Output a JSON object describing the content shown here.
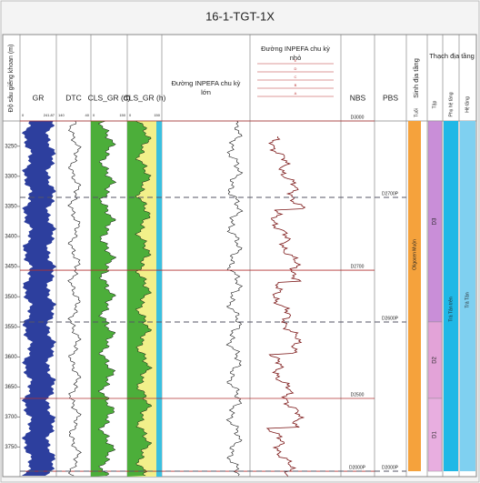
{
  "title": "16-1-TGT-1X",
  "depth_axis": {
    "label": "Độ sâu giếng khoan (m)",
    "lim": [
      3208,
      3799
    ],
    "ticks": [
      3250,
      3300,
      3350,
      3400,
      3450,
      3500,
      3550,
      3600,
      3650,
      3700,
      3750
    ]
  },
  "tracks": [
    {
      "label": "GR",
      "scale": [
        "0",
        "241.87"
      ]
    },
    {
      "label": "DTC",
      "scale": [
        "140",
        "40"
      ]
    },
    {
      "label": "CLS_GR (đ)",
      "scale": [
        "0",
        "150"
      ]
    },
    {
      "label": "CLS_GR (h)",
      "scale": [
        "0",
        "150"
      ]
    },
    {
      "label": "Đường INPEFA chu kỳ lớn"
    },
    {
      "label": "Đường INPEFA chu kỳ nhỏ",
      "legend": [
        "E",
        "D",
        "C",
        "B",
        "A"
      ]
    },
    {
      "label": "NBS"
    },
    {
      "label": "PBS"
    }
  ],
  "nbs_markers": [
    {
      "label": "D3000",
      "depth": 3208
    },
    {
      "label": "D2700",
      "depth": 3456
    },
    {
      "label": "D2500",
      "depth": 3669
    },
    {
      "label": "D2000P",
      "depth": 3790
    }
  ],
  "pbs_markers": [
    {
      "label": "D2700P",
      "depth": 3335
    },
    {
      "label": "D2600P",
      "depth": 3542
    },
    {
      "label": "D2000P",
      "depth": 3790
    }
  ],
  "biostrat": {
    "header": "Sinh địa tầng",
    "sub": "Tuổi",
    "age": "Oligocen Muộn"
  },
  "lithostrat": {
    "header": "Thạch địa tầng",
    "cols": [
      "Tập",
      "Phụ hệ tầng",
      "Hệ tầng"
    ],
    "sets": [
      {
        "label": "D3",
        "top": 3208,
        "bottom": 3542,
        "color": "#c98ed8"
      },
      {
        "label": "D2",
        "top": 3542,
        "bottom": 3669,
        "color": "#e3a3d8"
      },
      {
        "label": "D1",
        "top": 3669,
        "bottom": 3790,
        "color": "#e8aee0"
      }
    ],
    "subformation": "Trà Tân trên",
    "formation": "Trà Tân"
  }
}
